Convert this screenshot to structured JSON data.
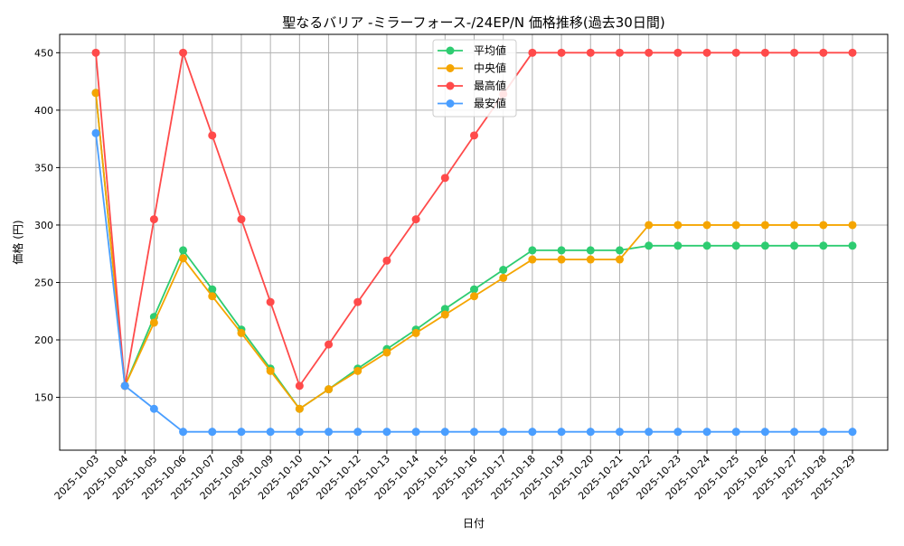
{
  "chart_data": {
    "type": "line",
    "title": "聖なるバリア -ミラーフォース-/24EP/N 価格推移(過去30日間)",
    "xlabel": "日付",
    "ylabel": "価格 (円)",
    "ylim": [
      104,
      466
    ],
    "yticks": [
      150,
      200,
      250,
      300,
      350,
      400,
      450
    ],
    "grid": true,
    "legend_position": "top-center",
    "categories": [
      "2025-10-03",
      "2025-10-04",
      "2025-10-05",
      "2025-10-06",
      "2025-10-07",
      "2025-10-08",
      "2025-10-09",
      "2025-10-10",
      "2025-10-11",
      "2025-10-12",
      "2025-10-13",
      "2025-10-14",
      "2025-10-15",
      "2025-10-16",
      "2025-10-17",
      "2025-10-18",
      "2025-10-19",
      "2025-10-20",
      "2025-10-21",
      "2025-10-22",
      "2025-10-23",
      "2025-10-24",
      "2025-10-25",
      "2025-10-26",
      "2025-10-27",
      "2025-10-28",
      "2025-10-29"
    ],
    "series": [
      {
        "name": "平均値",
        "color": "#2ecc71",
        "values": [
          415,
          160,
          220,
          278,
          244,
          209,
          175,
          140,
          157,
          175,
          192,
          209,
          227,
          244,
          261,
          278,
          278,
          278,
          278,
          282,
          282,
          282,
          282,
          282,
          282,
          282,
          282
        ]
      },
      {
        "name": "中央値",
        "color": "#f5a500",
        "values": [
          415,
          160,
          215,
          271,
          238,
          206,
          173,
          140,
          157,
          173,
          189,
          206,
          222,
          238,
          254,
          270,
          270,
          270,
          270,
          300,
          300,
          300,
          300,
          300,
          300,
          300,
          300
        ]
      },
      {
        "name": "最高値",
        "color": "#ff4a4a",
        "values": [
          450,
          160,
          305,
          450,
          378,
          305,
          233,
          160,
          196,
          233,
          269,
          305,
          341,
          378,
          414,
          450,
          450,
          450,
          450,
          450,
          450,
          450,
          450,
          450,
          450,
          450,
          450
        ]
      },
      {
        "name": "最安値",
        "color": "#4a9eff",
        "values": [
          380,
          160,
          140,
          120,
          120,
          120,
          120,
          120,
          120,
          120,
          120,
          120,
          120,
          120,
          120,
          120,
          120,
          120,
          120,
          120,
          120,
          120,
          120,
          120,
          120,
          120,
          120
        ]
      }
    ]
  }
}
